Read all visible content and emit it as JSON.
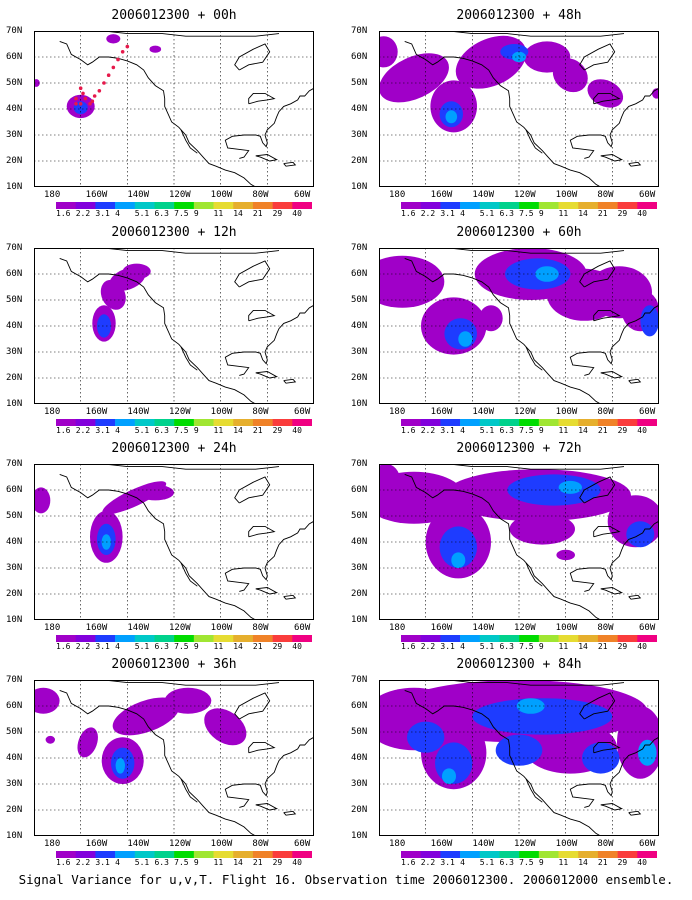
{
  "figure": {
    "caption": "Signal Variance for u,v,T. Flight 16. Observation time 2006012300. 2006012000 ensemble."
  },
  "axes": {
    "lat_labels": [
      "70N",
      "60N",
      "50N",
      "40N",
      "30N",
      "20N",
      "10N"
    ],
    "lon_labels": [
      "180",
      "160W",
      "140W",
      "120W",
      "100W",
      "80W",
      "60W"
    ]
  },
  "colorbar": {
    "labels": [
      "1.6",
      "2.2",
      "3.1",
      "4",
      "5.1",
      "6.3",
      "7.5",
      "9",
      "11",
      "14",
      "21",
      "29",
      "40"
    ],
    "colors": [
      "#a000c8",
      "#8200dc",
      "#1e3cff",
      "#00a0ff",
      "#00c8c8",
      "#00d28c",
      "#00dc00",
      "#a0e632",
      "#e6dc32",
      "#e6af2d",
      "#f08228",
      "#fa3c3c",
      "#f00082"
    ]
  },
  "colors": {
    "var_levels": [
      "#a000c8",
      "#1e3cff",
      "#00a0ff",
      "#00c8c8"
    ],
    "obs_marker": "#e6194b",
    "coast": "#000000",
    "grid": "#000000"
  },
  "panels": [
    {
      "title": "2006012300 + 00h",
      "lead_h": 0
    },
    {
      "title": "2006012300 + 48h",
      "lead_h": 48
    },
    {
      "title": "2006012300 + 12h",
      "lead_h": 12
    },
    {
      "title": "2006012300 + 60h",
      "lead_h": 60
    },
    {
      "title": "2006012300 + 24h",
      "lead_h": 24
    },
    {
      "title": "2006012300 + 72h",
      "lead_h": 72
    },
    {
      "title": "2006012300 + 36h",
      "lead_h": 36
    },
    {
      "title": "2006012300 + 84h",
      "lead_h": 84
    }
  ]
}
